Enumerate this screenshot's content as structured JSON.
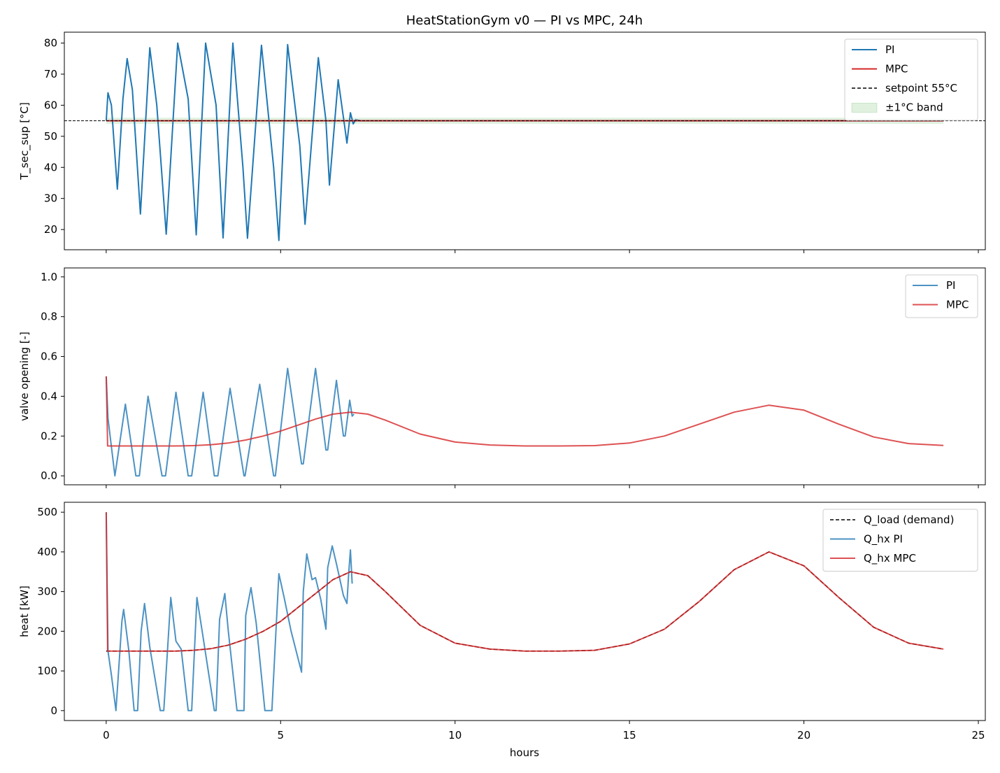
{
  "title": "HeatStationGym v0 — PI vs MPC, 24h",
  "xlabel": "hours",
  "colors": {
    "pi": "#1f77b4",
    "mpc": "#d62728",
    "setpoint": "#000000",
    "band": "#2ca02c",
    "load": "#000000"
  },
  "chart_data": [
    {
      "type": "line",
      "ylabel": "T_sec_sup [°C]",
      "xlim": [
        -1.2,
        25.2
      ],
      "ylim": [
        13.5,
        83.5
      ],
      "xticks": [
        0,
        5,
        10,
        15,
        20,
        25
      ],
      "yticks": [
        20,
        30,
        40,
        50,
        60,
        70,
        80
      ],
      "legend_position": "top-right",
      "setpoint": 55,
      "band": [
        54,
        56
      ],
      "legend": [
        {
          "label": "PI",
          "kind": "line",
          "color": "#1f77b4"
        },
        {
          "label": "MPC",
          "kind": "line",
          "color": "#d62728"
        },
        {
          "label": "setpoint 55°C",
          "kind": "dashed",
          "color": "#000000"
        },
        {
          "label": "±1°C band",
          "kind": "patch",
          "color": "#2ca02c"
        }
      ],
      "series": [
        {
          "name": "PI",
          "x": [
            0,
            0.05,
            0.15,
            0.32,
            0.48,
            0.6,
            0.75,
            0.98,
            1.25,
            1.45,
            1.72,
            2.05,
            2.35,
            2.58,
            2.85,
            3.15,
            3.35,
            3.63,
            3.92,
            4.05,
            4.45,
            4.8,
            4.95,
            5.2,
            5.55,
            5.7,
            6.08,
            6.3,
            6.4,
            6.65,
            6.85,
            6.9,
            7.0,
            7.08,
            7.15,
            7.3,
            24
          ],
          "y": [
            55,
            64,
            60,
            33,
            62,
            75,
            65,
            25,
            78.5,
            60,
            18.5,
            80,
            62,
            18.3,
            80,
            60,
            17.3,
            80,
            40,
            17.2,
            79.3,
            40,
            16.5,
            79.5,
            47,
            21.7,
            75.3,
            55,
            34.3,
            68.2,
            52,
            47.8,
            57.6,
            54,
            55.3,
            55,
            55
          ]
        },
        {
          "name": "MPC",
          "x": [
            0,
            24
          ],
          "y": [
            55,
            55
          ]
        }
      ]
    },
    {
      "type": "line",
      "ylabel": "valve opening [-]",
      "xlim": [
        -1.2,
        25.2
      ],
      "ylim": [
        -0.045,
        1.045
      ],
      "xticks": [
        0,
        5,
        10,
        15,
        20,
        25
      ],
      "yticks": [
        0.0,
        0.2,
        0.4,
        0.6,
        0.8,
        1.0
      ],
      "ytick_labels": [
        "0.0",
        "0.2",
        "0.4",
        "0.6",
        "0.8",
        "1.0"
      ],
      "legend_position": "top-right",
      "legend": [
        {
          "label": "PI",
          "kind": "line",
          "color": "#1f77b4"
        },
        {
          "label": "MPC",
          "kind": "line",
          "color": "#d62728"
        }
      ],
      "series": [
        {
          "name": "PI",
          "x": [
            0,
            0.05,
            0.25,
            0.55,
            0.85,
            0.95,
            1.2,
            1.6,
            1.7,
            2.0,
            2.35,
            2.45,
            2.78,
            3.1,
            3.2,
            3.55,
            3.95,
            3.98,
            4.4,
            4.8,
            4.85,
            5.2,
            5.6,
            5.65,
            6.0,
            6.3,
            6.35,
            6.6,
            6.8,
            6.85,
            6.98,
            7.05,
            7.1
          ],
          "y": [
            0.5,
            0.29,
            0.0,
            0.36,
            0.0,
            0.0,
            0.4,
            0.0,
            0.0,
            0.42,
            0.0,
            0.0,
            0.42,
            0.0,
            0.0,
            0.44,
            0.0,
            0.0,
            0.46,
            0.0,
            0.0,
            0.54,
            0.06,
            0.06,
            0.54,
            0.13,
            0.13,
            0.48,
            0.2,
            0.2,
            0.38,
            0.3,
            0.31
          ]
        },
        {
          "name": "MPC",
          "x": [
            0,
            0.04,
            0.5,
            1,
            1.5,
            2,
            2.5,
            3,
            3.5,
            4,
            4.5,
            5,
            5.5,
            6,
            6.5,
            7,
            7.5,
            8,
            9,
            10,
            11,
            12,
            13,
            14,
            15,
            16,
            17,
            18,
            19,
            20,
            21,
            22,
            23,
            24
          ],
          "y": [
            0.5,
            0.15,
            0.15,
            0.15,
            0.15,
            0.15,
            0.152,
            0.156,
            0.165,
            0.18,
            0.2,
            0.225,
            0.255,
            0.285,
            0.31,
            0.32,
            0.31,
            0.28,
            0.21,
            0.17,
            0.155,
            0.15,
            0.15,
            0.152,
            0.165,
            0.2,
            0.26,
            0.32,
            0.355,
            0.33,
            0.26,
            0.195,
            0.162,
            0.153
          ]
        }
      ]
    },
    {
      "type": "line",
      "ylabel": "heat [kW]",
      "xlabel": "hours",
      "xlim": [
        -1.2,
        25.2
      ],
      "ylim": [
        -25,
        525
      ],
      "xticks": [
        0,
        5,
        10,
        15,
        20,
        25
      ],
      "yticks": [
        0,
        100,
        200,
        300,
        400,
        500
      ],
      "legend_position": "top-right",
      "legend": [
        {
          "label": "Q_load (demand)",
          "kind": "dashed",
          "color": "#000000"
        },
        {
          "label": "Q_hx PI",
          "kind": "line",
          "color": "#1f77b4"
        },
        {
          "label": "Q_hx MPC",
          "kind": "line",
          "color": "#d62728"
        }
      ],
      "series": [
        {
          "name": "Q_load (demand)",
          "x": [
            0,
            1,
            2,
            2.5,
            3,
            3.5,
            4,
            4.5,
            5,
            5.5,
            6,
            6.5,
            7,
            7.5,
            8,
            9,
            10,
            11,
            12,
            13,
            14,
            15,
            16,
            17,
            18,
            19,
            20,
            21,
            22,
            23,
            24
          ],
          "y": [
            150,
            150,
            150,
            152,
            156,
            165,
            180,
            200,
            225,
            260,
            295,
            330,
            350,
            340,
            300,
            215,
            170,
            155,
            150,
            150,
            152,
            168,
            205,
            275,
            355,
            400,
            365,
            285,
            210,
            170,
            155
          ]
        },
        {
          "name": "Q_hx PI",
          "x": [
            0,
            0.05,
            0.15,
            0.28,
            0.45,
            0.5,
            0.65,
            0.8,
            0.9,
            1.0,
            1.1,
            1.25,
            1.55,
            1.6,
            1.65,
            1.85,
            2.0,
            2.15,
            2.35,
            2.45,
            2.6,
            2.75,
            3.1,
            3.15,
            3.25,
            3.4,
            3.5,
            3.75,
            3.95,
            4.0,
            4.15,
            4.3,
            4.55,
            4.7,
            4.75,
            4.95,
            5.1,
            5.3,
            5.6,
            5.65,
            5.75,
            5.9,
            6.0,
            6.15,
            6.3,
            6.35,
            6.48,
            6.6,
            6.8,
            6.9,
            6.95,
            7.0,
            7.05
          ],
          "y": [
            500,
            150,
            90,
            0,
            225,
            255,
            150,
            0,
            0,
            200,
            270,
            160,
            0,
            0,
            0,
            285,
            175,
            155,
            0,
            0,
            285,
            200,
            0,
            0,
            230,
            295,
            200,
            0,
            0,
            240,
            310,
            220,
            0,
            0,
            0,
            345,
            285,
            200,
            97,
            300,
            395,
            330,
            335,
            280,
            205,
            360,
            415,
            370,
            290,
            270,
            345,
            405,
            320
          ]
        },
        {
          "name": "Q_hx MPC",
          "x": [
            0,
            0.04,
            1,
            2,
            2.5,
            3,
            3.5,
            4,
            4.5,
            5,
            5.5,
            6,
            6.5,
            7,
            7.5,
            8,
            9,
            10,
            11,
            12,
            13,
            14,
            15,
            16,
            17,
            18,
            19,
            20,
            21,
            22,
            23,
            24
          ],
          "y": [
            500,
            150,
            150,
            150,
            152,
            156,
            165,
            180,
            200,
            225,
            260,
            295,
            330,
            350,
            340,
            300,
            215,
            170,
            155,
            150,
            150,
            152,
            168,
            205,
            275,
            355,
            400,
            365,
            285,
            210,
            170,
            155
          ]
        }
      ]
    }
  ]
}
